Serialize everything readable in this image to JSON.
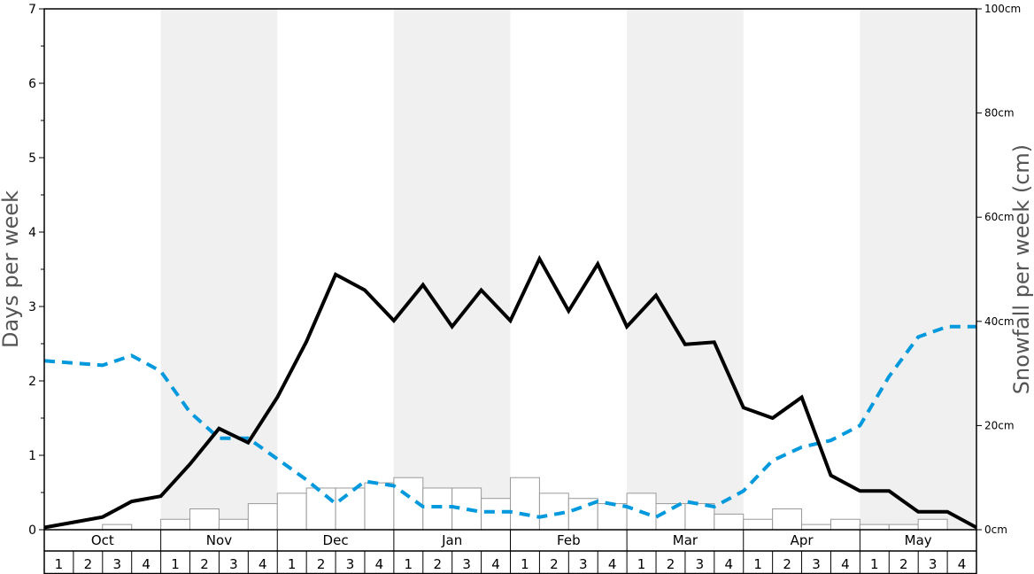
{
  "chart_data": {
    "type": "bar+line",
    "y_left": {
      "label": "Days per week",
      "ticks": [
        "0",
        "1",
        "2",
        "3",
        "4",
        "5",
        "6",
        "7"
      ],
      "ylim": [
        0,
        7
      ]
    },
    "y_right": {
      "label": "Snowfall per week (cm)",
      "ticks": [
        "0cm",
        "20cm",
        "40cm",
        "60cm",
        "80cm",
        "100cm"
      ],
      "ylim": [
        0,
        100
      ]
    },
    "months": [
      "Oct",
      "Nov",
      "Dec",
      "Jan",
      "Feb",
      "Mar",
      "Apr",
      "May"
    ],
    "weeks": [
      "1",
      "2",
      "3",
      "4"
    ],
    "shaded_months": [
      1,
      3,
      5,
      7
    ],
    "colors": {
      "days_line": "#000000",
      "temp_line": "#0099dd",
      "shade": "#f0f0f0",
      "bar_fill": "#ffffff",
      "bar_stroke": "#999999"
    },
    "snowfall_cm": [
      0,
      0,
      1,
      0,
      2,
      4,
      2,
      5,
      7,
      8,
      8,
      9,
      10,
      8,
      8,
      6,
      10,
      7,
      6,
      5,
      7,
      5,
      5,
      3,
      2,
      4,
      1,
      2,
      1,
      1,
      2,
      0
    ],
    "days_per_week": [
      0.03,
      0.1,
      0.17,
      0.38,
      0.45,
      0.88,
      1.36,
      1.17,
      1.78,
      2.53,
      3.43,
      3.22,
      2.81,
      3.29,
      2.73,
      3.22,
      2.81,
      3.64,
      2.94,
      3.57,
      2.73,
      3.15,
      2.49,
      2.52,
      1.64,
      1.5,
      1.78,
      0.73,
      0.52,
      0.52,
      0.24,
      0.24,
      0.03
    ],
    "dashed_series_days": [
      2.27,
      2.24,
      2.21,
      2.34,
      2.13,
      1.58,
      1.23,
      1.23,
      0.95,
      0.67,
      0.35,
      0.65,
      0.59,
      0.31,
      0.31,
      0.24,
      0.24,
      0.17,
      0.24,
      0.38,
      0.31,
      0.17,
      0.38,
      0.31,
      0.52,
      0.93,
      1.11,
      1.2,
      1.4,
      2.06,
      2.59,
      2.73,
      2.73
    ]
  }
}
